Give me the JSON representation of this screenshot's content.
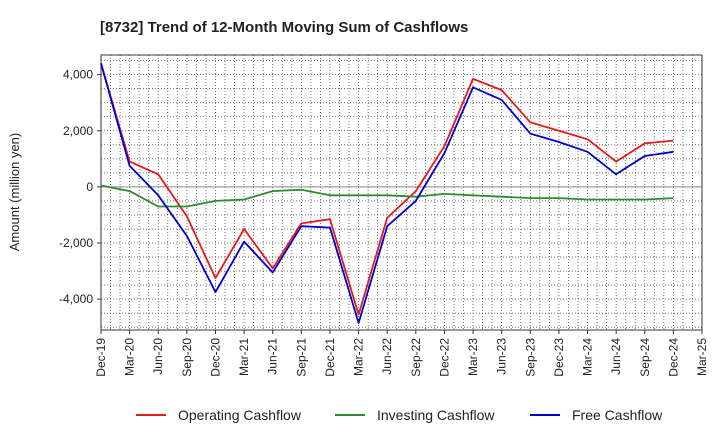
{
  "chart_data": {
    "type": "line",
    "title": "[8732]  Trend of 12-Month Moving Sum of Cashflows",
    "xlabel": "",
    "ylabel": "Amount (million yen)",
    "ylim": [
      -5100,
      4700
    ],
    "yticks": [
      -4000,
      -2000,
      0,
      2000,
      4000
    ],
    "ytick_labels": [
      "-4,000",
      "-2,000",
      "0",
      "2,000",
      "4,000"
    ],
    "x_tick_labels": [
      "Dec-19",
      "Mar-20",
      "Jun-20",
      "Sep-20",
      "Dec-20",
      "Mar-21",
      "Jun-21",
      "Sep-21",
      "Dec-21",
      "Mar-22",
      "Jun-22",
      "Sep-22",
      "Dec-22",
      "Mar-23",
      "Jun-23",
      "Sep-23",
      "Dec-23",
      "Mar-24",
      "Jun-24",
      "Sep-24",
      "Dec-24",
      "Mar-25"
    ],
    "x": [
      "Dec-19",
      "Mar-20",
      "Jun-20",
      "Sep-20",
      "Dec-20",
      "Mar-21",
      "Jun-21",
      "Sep-21",
      "Dec-21",
      "Mar-22",
      "Jun-22",
      "Sep-22",
      "Dec-22",
      "Mar-23",
      "Jun-23",
      "Sep-23",
      "Dec-23",
      "Mar-24",
      "Jun-24",
      "Sep-24",
      "Dec-24"
    ],
    "series": [
      {
        "name": "Operating Cashflow",
        "color": "#e31a1c",
        "values": [
          4400,
          900,
          450,
          -1050,
          -3250,
          -1500,
          -2900,
          -1300,
          -1150,
          -4550,
          -1100,
          -150,
          1450,
          3850,
          3450,
          2300,
          2000,
          1700,
          900,
          1550,
          1650
        ]
      },
      {
        "name": "Investing Cashflow",
        "color": "#2e8b2e",
        "values": [
          50,
          -150,
          -700,
          -700,
          -500,
          -450,
          -150,
          -100,
          -300,
          -300,
          -300,
          -350,
          -250,
          -300,
          -350,
          -400,
          -400,
          -450,
          -450,
          -450,
          -400
        ]
      },
      {
        "name": "Free Cashflow",
        "color": "#0000cc",
        "values": [
          4400,
          750,
          -300,
          -1750,
          -3750,
          -1950,
          -3050,
          -1400,
          -1450,
          -4850,
          -1400,
          -500,
          1200,
          3550,
          3100,
          1900,
          1600,
          1250,
          450,
          1100,
          1250
        ]
      }
    ],
    "grid": true,
    "legend_position": "bottom"
  }
}
